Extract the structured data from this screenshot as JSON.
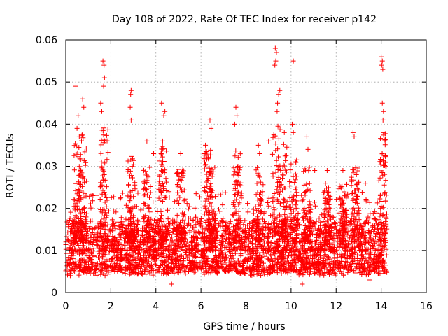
{
  "chart_data": {
    "type": "scatter",
    "title": "Day 108 of 2022, Rate Of TEC Index for receiver p142",
    "xlabel": "GPS time / hours",
    "ylabel": "ROTI / TECUs",
    "xlim": [
      0,
      16
    ],
    "ylim": [
      0,
      0.06
    ],
    "xticks": [
      0,
      2,
      4,
      6,
      8,
      10,
      12,
      14,
      16
    ],
    "yticks": [
      0,
      0.01,
      0.02,
      0.03,
      0.04,
      0.05,
      0.06
    ],
    "xtick_labels": [
      "0",
      "2",
      "4",
      "6",
      "8",
      "10",
      "12",
      "14",
      "16"
    ],
    "ytick_labels": [
      "0",
      "0.01",
      "0.02",
      "0.03",
      "0.04",
      "0.05",
      "0.06"
    ],
    "grid": true,
    "marker": "+",
    "color": "#ff0000",
    "data_range_x": [
      0,
      14.25
    ],
    "series": [
      {
        "name": "ROTI",
        "points": [
          [
            0.45,
            0.049
          ],
          [
            0.75,
            0.046
          ],
          [
            0.8,
            0.044
          ],
          [
            1.65,
            0.055
          ],
          [
            1.7,
            0.054
          ],
          [
            1.72,
            0.051
          ],
          [
            1.68,
            0.049
          ],
          [
            1.55,
            0.045
          ],
          [
            1.6,
            0.043
          ],
          [
            2.9,
            0.048
          ],
          [
            2.88,
            0.047
          ],
          [
            2.86,
            0.044
          ],
          [
            2.9,
            0.041
          ],
          [
            4.25,
            0.045
          ],
          [
            4.4,
            0.043
          ],
          [
            4.35,
            0.042
          ],
          [
            6.4,
            0.041
          ],
          [
            6.45,
            0.039
          ],
          [
            7.55,
            0.044
          ],
          [
            7.6,
            0.042
          ],
          [
            7.5,
            0.04
          ],
          [
            9.3,
            0.058
          ],
          [
            9.35,
            0.057
          ],
          [
            9.32,
            0.055
          ],
          [
            9.28,
            0.054
          ],
          [
            9.5,
            0.048
          ],
          [
            9.45,
            0.047
          ],
          [
            9.4,
            0.045
          ],
          [
            9.38,
            0.043
          ],
          [
            10.1,
            0.055
          ],
          [
            10.05,
            0.04
          ],
          [
            10.1,
            0.038
          ],
          [
            12.75,
            0.038
          ],
          [
            12.8,
            0.037
          ],
          [
            14.0,
            0.056
          ],
          [
            14.05,
            0.055
          ],
          [
            14.02,
            0.054
          ],
          [
            14.07,
            0.053
          ],
          [
            14.05,
            0.045
          ],
          [
            14.1,
            0.043
          ],
          [
            14.08,
            0.041
          ],
          [
            14.12,
            0.038
          ],
          [
            0.55,
            0.042
          ],
          [
            0.5,
            0.039
          ],
          [
            0.6,
            0.037
          ],
          [
            3.6,
            0.036
          ],
          [
            3.9,
            0.033
          ],
          [
            4.3,
            0.036
          ],
          [
            5.1,
            0.033
          ],
          [
            6.2,
            0.035
          ],
          [
            8.55,
            0.035
          ],
          [
            8.6,
            0.033
          ],
          [
            9.0,
            0.036
          ],
          [
            9.7,
            0.038
          ],
          [
            10.7,
            0.037
          ],
          [
            10.75,
            0.034
          ],
          [
            11.05,
            0.029
          ],
          [
            11.6,
            0.029
          ],
          [
            12.3,
            0.029
          ],
          [
            12.9,
            0.028
          ],
          [
            13.3,
            0.026
          ],
          [
            10.5,
            0.002
          ],
          [
            4.7,
            0.002
          ],
          [
            13.5,
            0.003
          ],
          [
            0.2,
            0.004
          ]
        ]
      }
    ]
  }
}
